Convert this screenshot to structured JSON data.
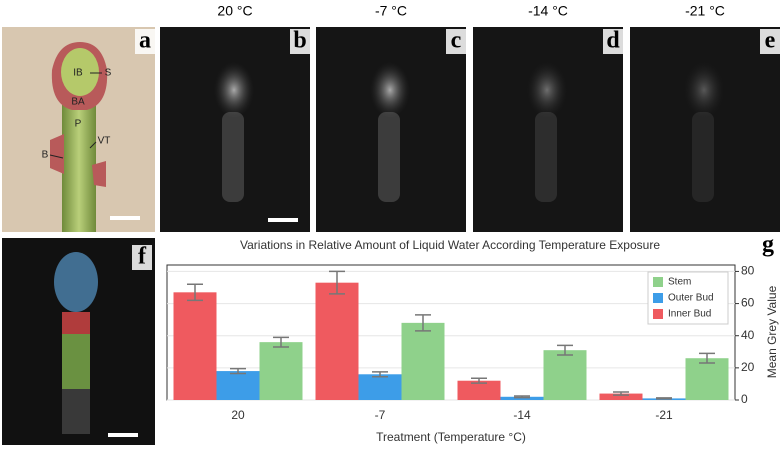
{
  "panels": [
    {
      "letter": "a"
    },
    {
      "letter": "b",
      "temperature": "20 °C"
    },
    {
      "letter": "c",
      "temperature": "-7 °C"
    },
    {
      "letter": "d",
      "temperature": "-14 °C"
    },
    {
      "letter": "e",
      "temperature": "-21 °C"
    },
    {
      "letter": "f"
    }
  ],
  "labels": [
    "IB",
    "S",
    "BA",
    "P",
    "VT",
    "B"
  ],
  "chart_data": {
    "type": "bar",
    "panel_letter": "g",
    "title": "Variations in Relative Amount of Liquid Water According Temperature Exposure",
    "x_label": "Treatment (Temperature °C)",
    "y_label": "Mean Grey Value",
    "categories": [
      "20",
      "-7",
      "-14",
      "-21"
    ],
    "series": [
      {
        "name": "Inner Bud",
        "color": "#ef5a5f",
        "values": [
          67,
          73,
          12,
          4
        ],
        "errors": [
          5,
          7,
          1.5,
          1
        ]
      },
      {
        "name": "Outer Bud",
        "color": "#3d9de8",
        "values": [
          18,
          16,
          2,
          1
        ],
        "errors": [
          1.5,
          1.5,
          0.5,
          0.3
        ]
      },
      {
        "name": "Stem",
        "color": "#8fd18b",
        "values": [
          36,
          48,
          31,
          26
        ],
        "errors": [
          3,
          5,
          3,
          3
        ]
      }
    ],
    "ylim": [
      0,
      84
    ],
    "yticks": [
      0,
      20,
      40,
      60,
      80
    ],
    "grid": true,
    "legend": "upper right"
  }
}
